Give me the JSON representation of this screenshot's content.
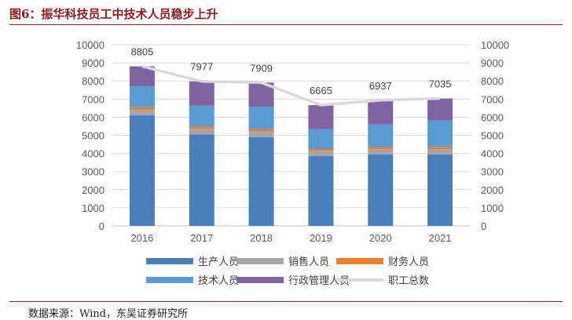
{
  "header": {
    "title": "图6：振华科技员工中技术人员稳步上升"
  },
  "footer": {
    "source": "数据来源：Wind，东吴证券研究所"
  },
  "chart_data": {
    "type": "bar",
    "stacked": true,
    "categories": [
      "2016",
      "2017",
      "2018",
      "2019",
      "2020",
      "2021"
    ],
    "series": [
      {
        "name": "生产人员",
        "color": "#4a7ebb",
        "values": [
          6100,
          5050,
          4900,
          3850,
          3950,
          3950
        ]
      },
      {
        "name": "销售人员",
        "color": "#a5a5a5",
        "values": [
          300,
          300,
          300,
          280,
          280,
          280
        ]
      },
      {
        "name": "财务人员",
        "color": "#ed7d31",
        "values": [
          150,
          130,
          130,
          110,
          120,
          130
        ]
      },
      {
        "name": "技术人员",
        "color": "#5b9bd5",
        "values": [
          1150,
          1150,
          1250,
          1100,
          1250,
          1450
        ]
      },
      {
        "name": "行政管理人员",
        "color": "#8064a2",
        "values": [
          1105,
          1347,
          1329,
          1325,
          1337,
          1225
        ]
      }
    ],
    "line": {
      "name": "职工总数",
      "color": "#d9d9d9",
      "values": [
        8805,
        7977,
        7909,
        6665,
        6937,
        7035
      ]
    },
    "yticks": [
      "0",
      "1000",
      "2000",
      "3000",
      "4000",
      "5000",
      "6000",
      "7000",
      "8000",
      "9000",
      "10000"
    ],
    "ylim": [
      0,
      10000
    ],
    "y2lim": [
      0,
      10000
    ],
    "legend_position": "bottom"
  }
}
